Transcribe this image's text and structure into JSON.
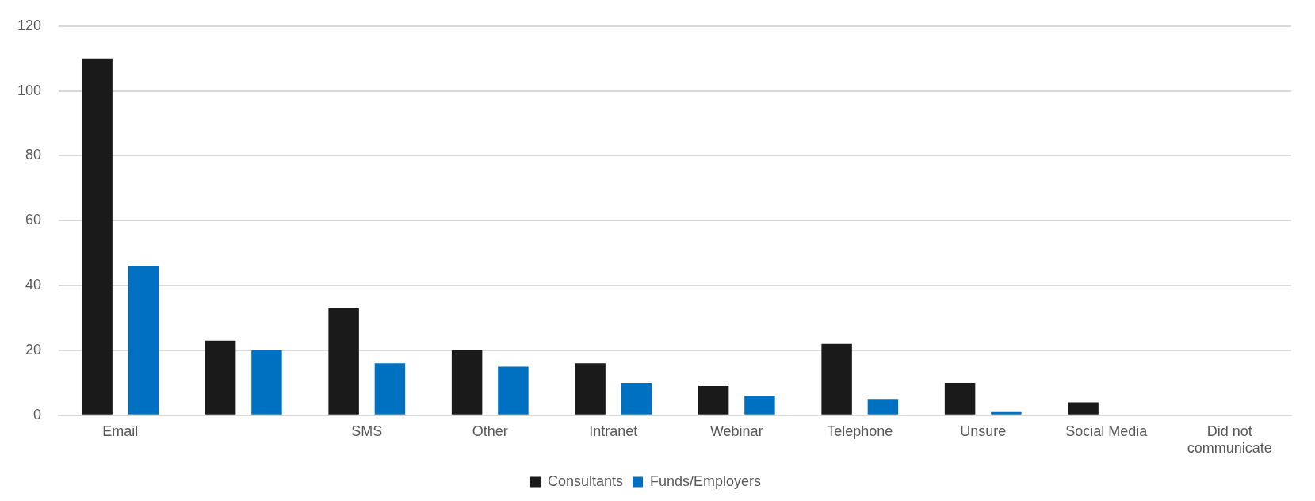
{
  "chart_data": {
    "type": "bar",
    "categories": [
      "Email",
      null,
      "SMS",
      "Other",
      "Intranet",
      "Webinar",
      "Telephone",
      "Unsure",
      "Social Media",
      "Did not communicate"
    ],
    "series": [
      {
        "name": "Consultants",
        "color": "#1a1a1a",
        "values": [
          110,
          23,
          33,
          20,
          16,
          9,
          22,
          10,
          4,
          0
        ]
      },
      {
        "name": "Funds/Employers",
        "color": "#0070c0",
        "values": [
          46,
          20,
          16,
          15,
          10,
          6,
          5,
          1,
          0,
          0
        ]
      }
    ],
    "ylim": [
      0,
      120
    ],
    "yticks": [
      0,
      20,
      40,
      60,
      80,
      100,
      120
    ],
    "grid": "y",
    "legend": "bottom"
  }
}
